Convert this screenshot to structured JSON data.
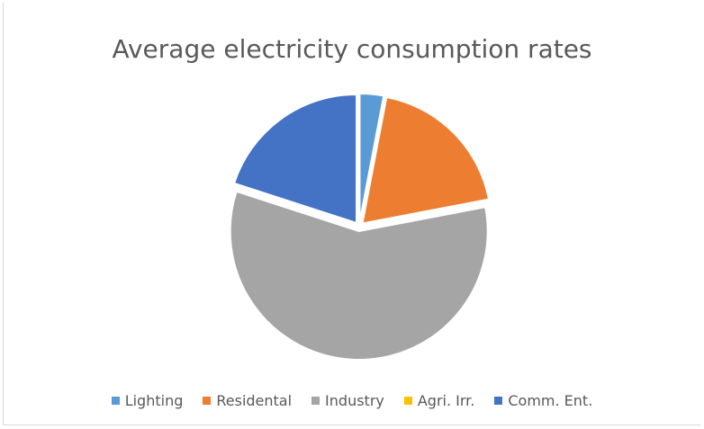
{
  "chart_data": {
    "type": "pie",
    "title": "Average electricity consumption rates",
    "categories": [
      "Lighting",
      "Residental",
      "Industry",
      "Agri. Irr.",
      "Comm. Ent."
    ],
    "values": [
      3,
      19,
      58,
      0,
      20
    ],
    "colors": [
      "#5b9bd5",
      "#ed7d31",
      "#a5a5a5",
      "#ffc000",
      "#4472c4"
    ],
    "legend_position": "bottom",
    "exploded": true
  }
}
